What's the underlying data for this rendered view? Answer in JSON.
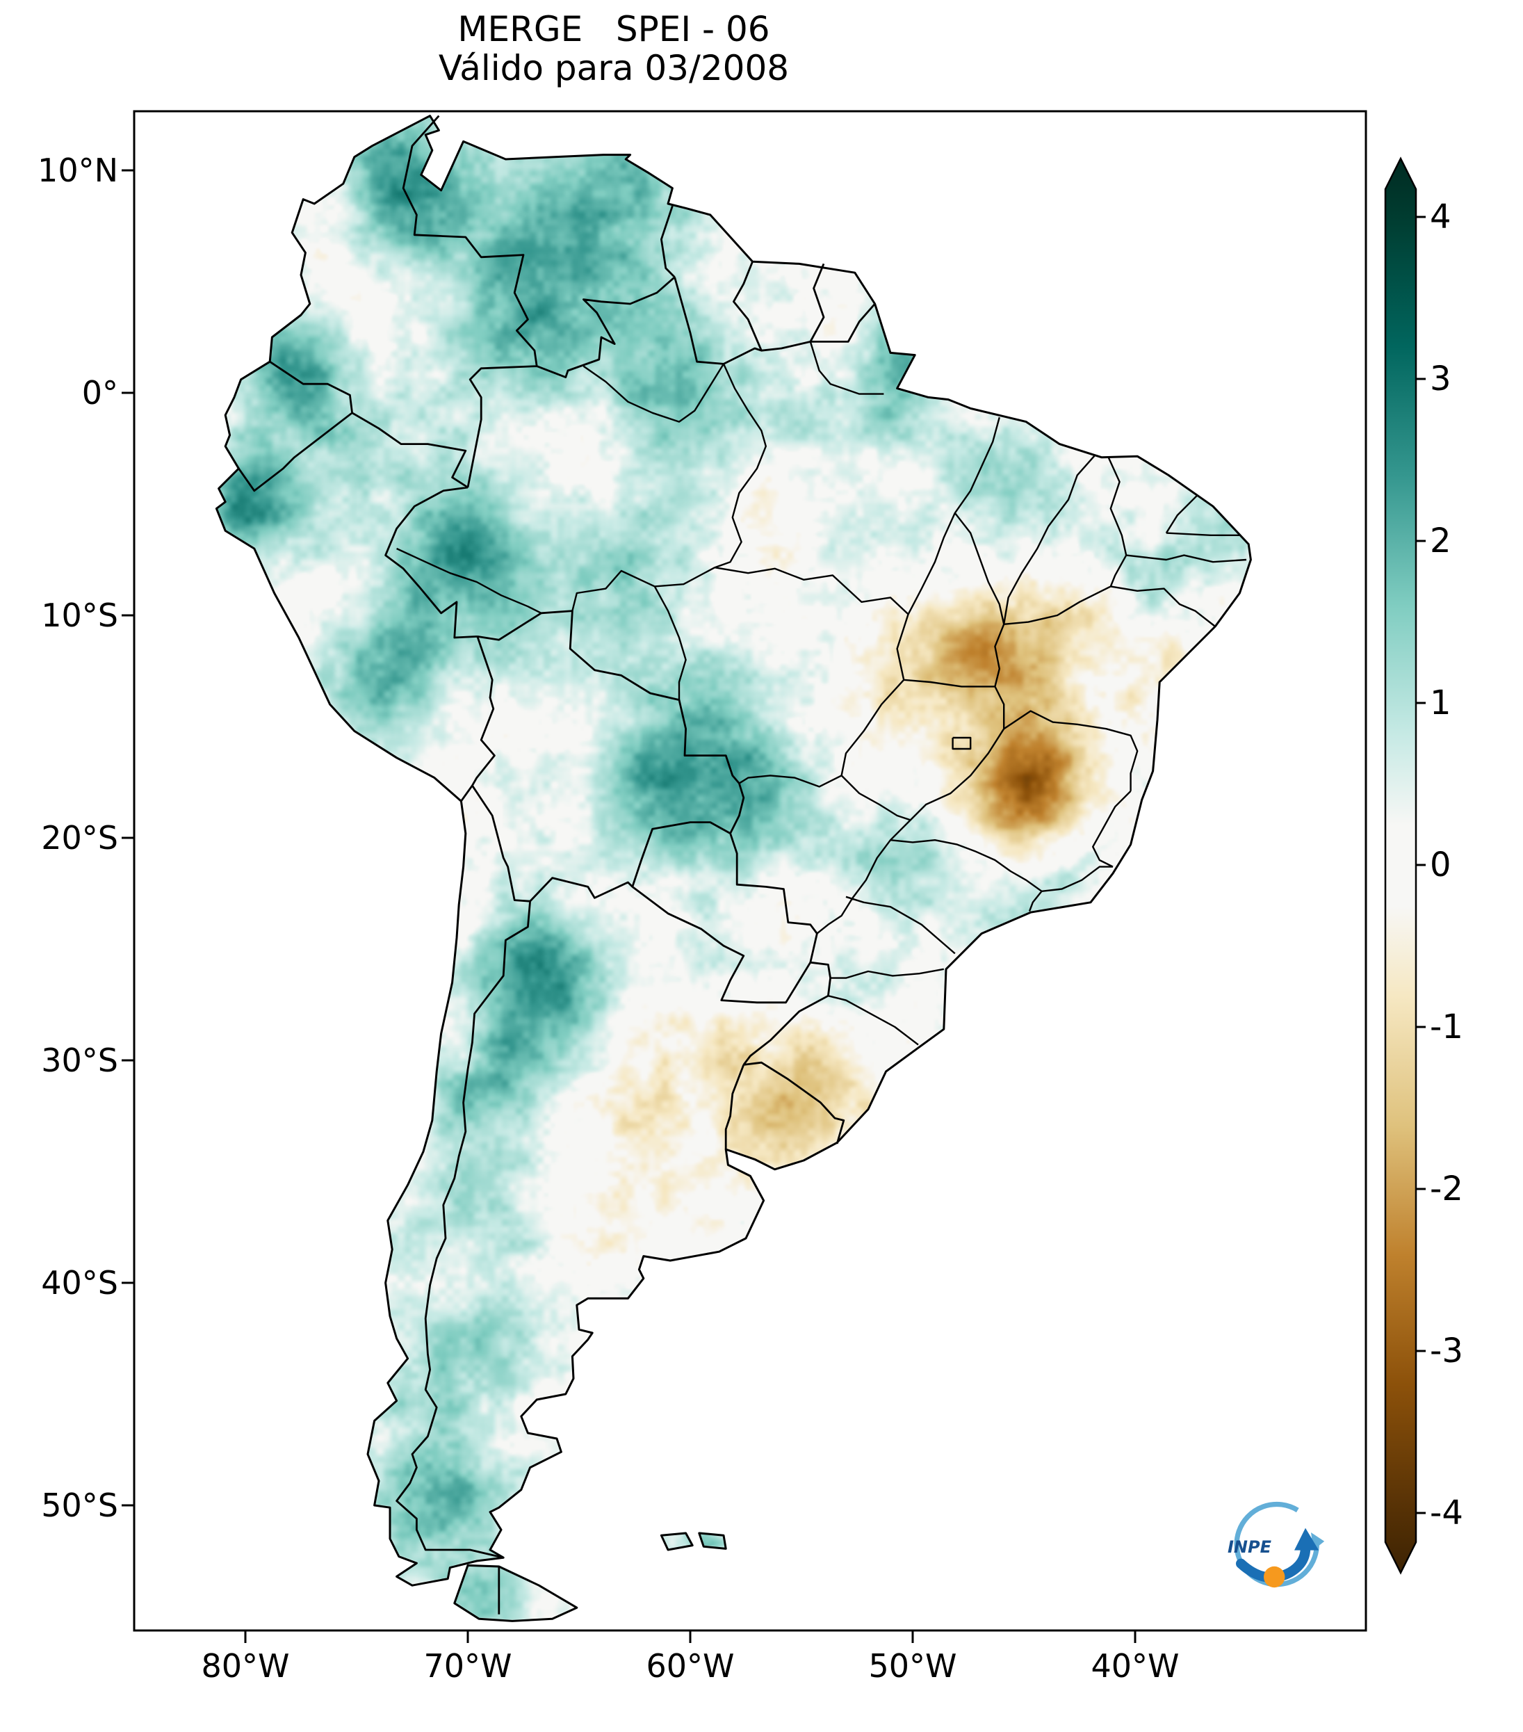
{
  "title": "MERGE   SPEI - 06",
  "subtitle": "Válido para 03/2008",
  "axes": {
    "x_ticks": [
      "80°W",
      "70°W",
      "60°W",
      "50°W",
      "40°W"
    ],
    "y_ticks": [
      "10°N",
      "0°",
      "10°S",
      "20°S",
      "30°S",
      "40°S",
      "50°S"
    ]
  },
  "colorbar": {
    "ticks": [
      "4",
      "3",
      "2",
      "1",
      "0",
      "-1",
      "-2",
      "-3",
      "-4"
    ],
    "min": -4,
    "max": 4,
    "colormap_stops": [
      {
        "v": -4.4,
        "c": "#3d2303"
      },
      {
        "v": -4.0,
        "c": "#543005"
      },
      {
        "v": -3.2,
        "c": "#8c510a"
      },
      {
        "v": -2.4,
        "c": "#bf812d"
      },
      {
        "v": -1.6,
        "c": "#dfc27d"
      },
      {
        "v": -0.8,
        "c": "#f6e8c3"
      },
      {
        "v": -0.25,
        "c": "#f7f7f5"
      },
      {
        "v": 0.25,
        "c": "#f7f7f5"
      },
      {
        "v": 0.8,
        "c": "#c7eae5"
      },
      {
        "v": 1.6,
        "c": "#80cdc1"
      },
      {
        "v": 2.4,
        "c": "#35978f"
      },
      {
        "v": 3.2,
        "c": "#01665e"
      },
      {
        "v": 4.0,
        "c": "#003c30"
      },
      {
        "v": 4.4,
        "c": "#002b22"
      }
    ]
  },
  "logo": {
    "label": "INPE"
  },
  "chart_data": {
    "type": "heatmap",
    "title": "MERGE SPEI - 06",
    "subtitle": "Válido para 03/2008",
    "product": "MERGE",
    "index_name": "SPEI",
    "accumulation_months": 6,
    "valid_for_month": "03/2008",
    "region": "South America",
    "value_range": [
      -4,
      4
    ],
    "colorbar_ticks": [
      4,
      3,
      2,
      1,
      0,
      -1,
      -2,
      -3,
      -4
    ],
    "x_axis": {
      "type": "longitude",
      "tick_labels": [
        "80°W",
        "70°W",
        "60°W",
        "50°W",
        "40°W"
      ],
      "range_deg": [
        -85.0,
        -29.6
      ]
    },
    "y_axis": {
      "type": "latitude",
      "tick_labels": [
        "10°N",
        "0°",
        "10°S",
        "20°S",
        "30°S",
        "40°S",
        "50°S"
      ],
      "range_deg": [
        12.7,
        -55.8
      ]
    },
    "legend_position": "right",
    "anomaly_regions_columns": [
      "lon_deg",
      "lat_deg",
      "sigma_deg",
      "spei_amplitude"
    ],
    "anomaly_regions": [
      [
        -73.5,
        10.3,
        2.0,
        1.5
      ],
      [
        -71.5,
        8.0,
        2.2,
        1.1
      ],
      [
        -66.5,
        7.0,
        3.0,
        1.2
      ],
      [
        -62.5,
        10.2,
        1.8,
        1.4
      ],
      [
        -63.5,
        4.0,
        2.8,
        1.2
      ],
      [
        -67.5,
        2.0,
        2.2,
        1.3
      ],
      [
        -60.5,
        1.5,
        2.2,
        0.9
      ],
      [
        -77.8,
        1.8,
        1.8,
        1.8
      ],
      [
        -76.2,
        -1.2,
        2.2,
        1.1
      ],
      [
        -79.8,
        -4.8,
        1.6,
        2.2
      ],
      [
        -70.2,
        -7.3,
        2.6,
        2.2
      ],
      [
        -72.8,
        -10.8,
        2.2,
        1.4
      ],
      [
        -74.8,
        -14.0,
        1.8,
        1.1
      ],
      [
        -63.0,
        -8.5,
        2.4,
        0.9
      ],
      [
        -61.5,
        -17.3,
        2.6,
        1.9
      ],
      [
        -58.2,
        -15.2,
        2.4,
        1.3
      ],
      [
        -56.6,
        -18.6,
        2.0,
        1.3
      ],
      [
        -66.6,
        -26.3,
        2.4,
        2.2
      ],
      [
        -68.8,
        -31.5,
        2.0,
        1.6
      ],
      [
        -70.0,
        -36.2,
        1.8,
        0.9
      ],
      [
        -69.6,
        -41.8,
        2.4,
        1.1
      ],
      [
        -73.0,
        -45.5,
        1.8,
        1.0
      ],
      [
        -71.3,
        -50.3,
        2.0,
        1.6
      ],
      [
        -69.3,
        -54.5,
        1.6,
        1.7
      ],
      [
        -59.3,
        -51.6,
        1.0,
        1.4
      ],
      [
        -50.6,
        0.8,
        1.8,
        1.3
      ],
      [
        -54.2,
        -2.2,
        2.2,
        0.8
      ],
      [
        -46.6,
        -3.6,
        2.2,
        0.9
      ],
      [
        -38.8,
        -7.6,
        1.8,
        1.0
      ],
      [
        -35.9,
        -5.9,
        1.4,
        0.9
      ],
      [
        -49.6,
        -20.8,
        2.2,
        0.8
      ],
      [
        -44.2,
        -21.9,
        1.8,
        0.9
      ],
      [
        -52.2,
        -28.6,
        1.6,
        0.8
      ],
      [
        -60.2,
        -3.2,
        2.4,
        0.7
      ],
      [
        -45.3,
        -18.2,
        2.0,
        -2.1
      ],
      [
        -43.9,
        -16.6,
        1.9,
        -1.0
      ],
      [
        -47.3,
        -10.9,
        1.8,
        -1.4
      ],
      [
        -46.6,
        -13.1,
        2.2,
        -0.8
      ],
      [
        -42.2,
        -12.2,
        2.4,
        -0.7
      ],
      [
        -55.2,
        -30.2,
        2.2,
        -1.1
      ],
      [
        -57.2,
        -32.6,
        2.2,
        -0.8
      ],
      [
        -62.5,
        -33.5,
        3.0,
        -0.5
      ],
      [
        -64.5,
        -38.0,
        2.6,
        -0.4
      ],
      [
        -75.5,
        2.2,
        1.8,
        -0.8
      ],
      [
        -69.5,
        8.3,
        1.6,
        -0.5
      ],
      [
        -57.6,
        -5.2,
        1.8,
        -0.6
      ],
      [
        -51.2,
        -13.6,
        1.8,
        -0.5
      ],
      [
        -44.2,
        -9.6,
        1.8,
        -0.6
      ],
      [
        -50.4,
        -27.4,
        1.3,
        -0.6
      ]
    ]
  }
}
